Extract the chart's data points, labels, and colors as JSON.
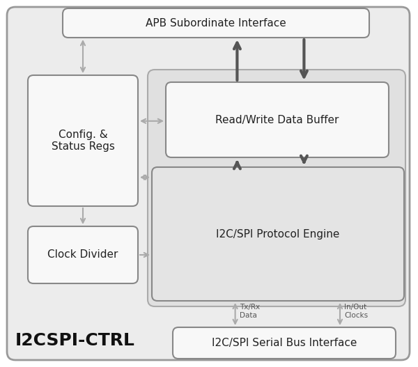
{
  "fig_width": 6.0,
  "fig_height": 5.27,
  "dpi": 100,
  "bg_color": "#ffffff",
  "outer_fill": "#ececec",
  "outer_edge": "#999999",
  "inner_group_fill": "#e0e0e0",
  "inner_group_edge": "#aaaaaa",
  "box_fill_white": "#f8f8f8",
  "box_fill_gray": "#e4e4e4",
  "box_edge": "#888888",
  "dark_arrow": "#555555",
  "light_arrow": "#aaaaaa",
  "title_text": "I2CSPI-CTRL",
  "label_apb": "APB Subordinate Interface",
  "label_config": "Config. &\nStatus Regs",
  "label_rw": "Read/Write Data Buffer",
  "label_proto": "I2C/SPI Protocol Engine",
  "label_clk": "Clock Divider",
  "label_serial": "I2C/SPI Serial Bus Interface",
  "label_txrx": "Tx/Rx\nData",
  "label_inout": "In/Out\nClocks"
}
